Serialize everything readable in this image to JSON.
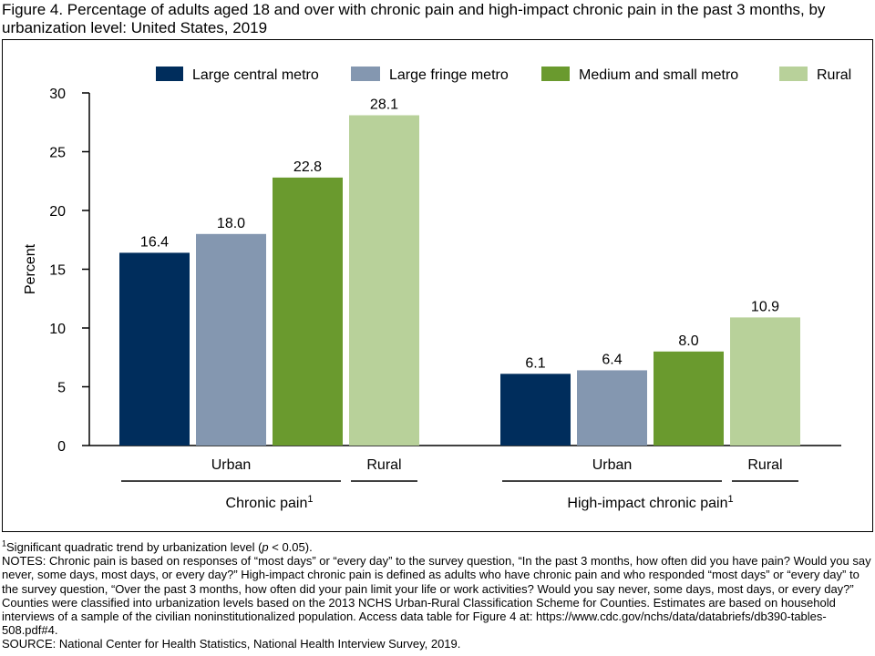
{
  "title": "Figure 4. Percentage of adults aged 18 and over with chronic pain and high-impact chronic pain in the past 3 months, by urbanization level: United States, 2019",
  "chart_data": {
    "type": "bar",
    "ylabel": "Percent",
    "ylim": [
      0,
      30
    ],
    "yticks": [
      0,
      5,
      10,
      15,
      20,
      25,
      30
    ],
    "grid": false,
    "legend_position": "top",
    "series": [
      {
        "name": "Large central metro",
        "color": "#002d5c"
      },
      {
        "name": "Large fringe metro",
        "color": "#8497b0"
      },
      {
        "name": "Medium and small metro",
        "color": "#6a9a2e"
      },
      {
        "name": "Rural",
        "color": "#b8d19a"
      }
    ],
    "groups": [
      {
        "label": "Chronic pain",
        "footnote_mark": "1",
        "values": [
          16.4,
          18.0,
          22.8,
          28.1
        ],
        "value_labels": [
          "16.4",
          "18.0",
          "22.8",
          "28.1"
        ],
        "subgroups": [
          "Urban",
          "Rural"
        ]
      },
      {
        "label": "High-impact chronic pain",
        "footnote_mark": "1",
        "values": [
          6.1,
          6.4,
          8.0,
          10.9
        ],
        "value_labels": [
          "6.1",
          "6.4",
          "8.0",
          "10.9"
        ],
        "subgroups": [
          "Urban",
          "Rural"
        ]
      }
    ]
  },
  "notes": {
    "footnote_mark": "1",
    "footnote_pre": "Significant quadratic trend by urbanization level (",
    "footnote_p": "p",
    "footnote_post": " < 0.05).",
    "notes_text": "NOTES: Chronic pain is based on responses of “most days” or “every day” to the survey question, “In the past 3 months, how often did you have pain? Would you say never, some days, most days, or every day?” High-impact chronic pain is defined as adults who have chronic pain and who responded “most days” or “every day” to the survey question, “Over the past 3 months, how often did your pain limit your life or work activities? Would you say never, some days, most days, or every day?” Counties were classified into urbanization levels based on the 2013 NCHS Urban-Rural Classification Scheme for Counties. Estimates are based on household interviews of a sample of the civilian noninstitutionalized population. Access data table for Figure 4 at: https://www.cdc.gov/nchs/data/databriefs/db390-tables-508.pdf#4.",
    "source_text": "SOURCE: National Center for Health Statistics, National Health Interview Survey, 2019."
  }
}
